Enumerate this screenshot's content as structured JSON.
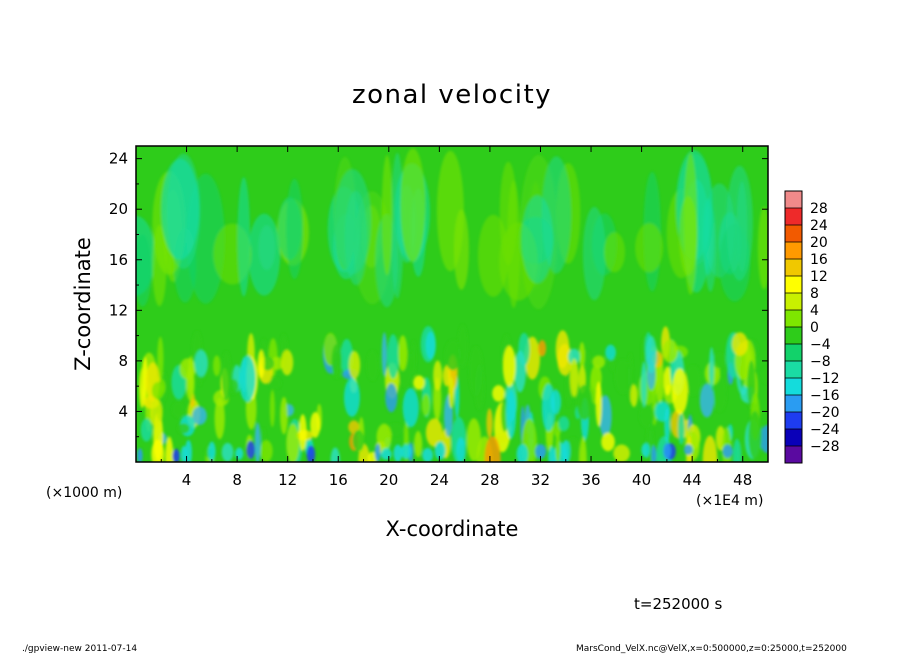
{
  "chart_data": {
    "type": "heatmap",
    "title": "zonal velocity",
    "xlabel": "X-coordinate",
    "ylabel": "Z-coordinate",
    "x_unit_label": "(×1E4 m)",
    "y_unit_label": "(×1000 m)",
    "xlim": [
      0,
      50
    ],
    "ylim": [
      0,
      25
    ],
    "x_ticks": [
      "4",
      "8",
      "12",
      "16",
      "20",
      "24",
      "28",
      "32",
      "36",
      "40",
      "44",
      "48"
    ],
    "y_ticks": [
      "4",
      "8",
      "12",
      "16",
      "20",
      "24"
    ],
    "colorbar": {
      "levels": [
        "28",
        "24",
        "20",
        "16",
        "12",
        "8",
        "4",
        "0",
        "−4",
        "−8",
        "−12",
        "−16",
        "−20",
        "−24",
        "−28"
      ],
      "colors": [
        "#f08a8a",
        "#ee2a2a",
        "#f25a00",
        "#ff9a00",
        "#f0c800",
        "#ffff00",
        "#c8f000",
        "#7ee600",
        "#2ecc1a",
        "#12d26a",
        "#1adca4",
        "#14dcdc",
        "#2a9cf2",
        "#1e3cf0",
        "#0a00b8",
        "#5a0aa0"
      ]
    },
    "field_description_levels": {
      "upper_layer_z": [
        12,
        25
      ],
      "upper_layer_range": [
        -4,
        4
      ],
      "lower_layer_z": [
        0,
        10
      ],
      "lower_layer_range": [
        -16,
        12
      ]
    },
    "time_label": "t=252000 s"
  },
  "footer": {
    "left": "./gpview-new   2011-07-14",
    "right": "MarsCond_VelX.nc@VelX,x=0:500000,z=0:25000,t=252000"
  }
}
